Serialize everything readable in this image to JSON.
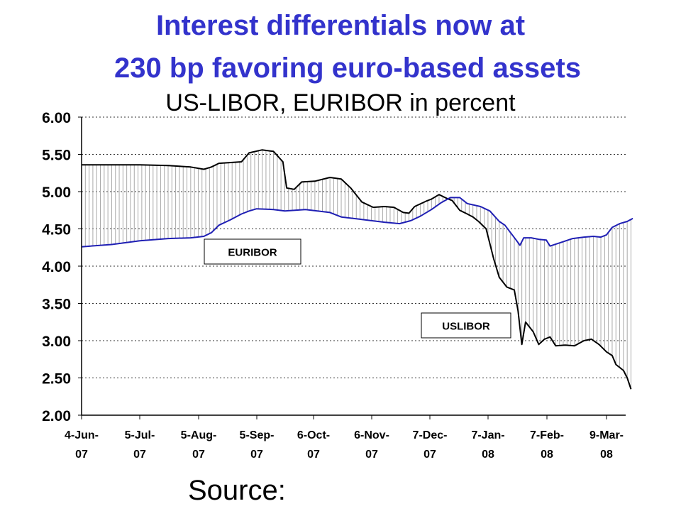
{
  "title_line1": "Interest differentials now at",
  "title_line2": "230 bp favoring euro-based assets",
  "title_color": "#3333cc",
  "subtitle": "US-LIBOR, EURIBOR in percent",
  "source": "Source:",
  "chart_data": {
    "type": "line",
    "title": "Interest differentials now at 230 bp favoring euro-based assets",
    "subtitle": "US-LIBOR, EURIBOR in percent",
    "ylim": [
      2.0,
      6.0
    ],
    "y_ticks": [
      "6.00",
      "5.50",
      "5.00",
      "4.50",
      "4.00",
      "3.50",
      "3.00",
      "2.50",
      "2.00"
    ],
    "x_ticks": [
      {
        "line1": "4-Jun-",
        "line2": "07"
      },
      {
        "line1": "5-Jul-",
        "line2": "07"
      },
      {
        "line1": "5-Aug-",
        "line2": "07"
      },
      {
        "line1": "5-Sep-",
        "line2": "07"
      },
      {
        "line1": "6-Oct-",
        "line2": "07"
      },
      {
        "line1": "6-Nov-",
        "line2": "07"
      },
      {
        "line1": "7-Dec-",
        "line2": "07"
      },
      {
        "line1": "7-Jan-",
        "line2": "08"
      },
      {
        "line1": "7-Feb-",
        "line2": "08"
      },
      {
        "line1": "9-Mar-",
        "line2": "08"
      }
    ],
    "grid": "horizontal dashed",
    "labels": [
      {
        "text": "EURIBOR",
        "series": "EURIBOR"
      },
      {
        "text": "USLIBOR",
        "series": "USLIBOR"
      }
    ],
    "series": [
      {
        "name": "USLIBOR",
        "color": "#000000",
        "points": [
          [
            "2007-06-04",
            5.36
          ],
          [
            "2007-06-20",
            5.36
          ],
          [
            "2007-07-05",
            5.36
          ],
          [
            "2007-07-20",
            5.35
          ],
          [
            "2007-08-01",
            5.33
          ],
          [
            "2007-08-08",
            5.3
          ],
          [
            "2007-08-12",
            5.33
          ],
          [
            "2007-08-16",
            5.38
          ],
          [
            "2007-08-28",
            5.4
          ],
          [
            "2007-09-01",
            5.52
          ],
          [
            "2007-09-08",
            5.56
          ],
          [
            "2007-09-14",
            5.54
          ],
          [
            "2007-09-19",
            5.4
          ],
          [
            "2007-09-21",
            5.05
          ],
          [
            "2007-09-25",
            5.03
          ],
          [
            "2007-09-29",
            5.13
          ],
          [
            "2007-10-06",
            5.14
          ],
          [
            "2007-10-14",
            5.19
          ],
          [
            "2007-10-20",
            5.17
          ],
          [
            "2007-10-25",
            5.05
          ],
          [
            "2007-10-31",
            4.86
          ],
          [
            "2007-11-06",
            4.79
          ],
          [
            "2007-11-12",
            4.8
          ],
          [
            "2007-11-17",
            4.79
          ],
          [
            "2007-11-22",
            4.72
          ],
          [
            "2007-11-25",
            4.71
          ],
          [
            "2007-11-28",
            4.8
          ],
          [
            "2007-12-04",
            4.87
          ],
          [
            "2007-12-07",
            4.9
          ],
          [
            "2007-12-11",
            4.96
          ],
          [
            "2007-12-15",
            4.91
          ],
          [
            "2007-12-18",
            4.88
          ],
          [
            "2007-12-22",
            4.75
          ],
          [
            "2007-12-26",
            4.7
          ],
          [
            "2007-12-29",
            4.66
          ],
          [
            "2008-01-01",
            4.6
          ],
          [
            "2008-01-05",
            4.5
          ],
          [
            "2008-01-07",
            4.3
          ],
          [
            "2008-01-09",
            4.1
          ],
          [
            "2008-01-12",
            3.85
          ],
          [
            "2008-01-16",
            3.72
          ],
          [
            "2008-01-20",
            3.68
          ],
          [
            "2008-01-22",
            3.4
          ],
          [
            "2008-01-24",
            2.95
          ],
          [
            "2008-01-26",
            3.25
          ],
          [
            "2008-01-30",
            3.12
          ],
          [
            "2008-02-02",
            2.95
          ],
          [
            "2008-02-05",
            3.02
          ],
          [
            "2008-02-08",
            3.05
          ],
          [
            "2008-02-11",
            2.93
          ],
          [
            "2008-02-16",
            2.94
          ],
          [
            "2008-02-21",
            2.93
          ],
          [
            "2008-02-26",
            3.0
          ],
          [
            "2008-03-01",
            3.02
          ],
          [
            "2008-03-05",
            2.95
          ],
          [
            "2008-03-09",
            2.85
          ],
          [
            "2008-03-12",
            2.8
          ],
          [
            "2008-03-14",
            2.68
          ],
          [
            "2008-03-18",
            2.6
          ],
          [
            "2008-03-20",
            2.5
          ],
          [
            "2008-03-22",
            2.35
          ]
        ]
      },
      {
        "name": "EURIBOR",
        "color": "#1f1fb4",
        "points": [
          [
            "2007-06-04",
            4.26
          ],
          [
            "2007-06-20",
            4.29
          ],
          [
            "2007-07-05",
            4.34
          ],
          [
            "2007-07-20",
            4.37
          ],
          [
            "2007-08-01",
            4.38
          ],
          [
            "2007-08-08",
            4.4
          ],
          [
            "2007-08-12",
            4.45
          ],
          [
            "2007-08-16",
            4.55
          ],
          [
            "2007-08-22",
            4.62
          ],
          [
            "2007-08-28",
            4.7
          ],
          [
            "2007-09-01",
            4.74
          ],
          [
            "2007-09-05",
            4.77
          ],
          [
            "2007-09-14",
            4.76
          ],
          [
            "2007-09-20",
            4.74
          ],
          [
            "2007-10-01",
            4.76
          ],
          [
            "2007-10-14",
            4.72
          ],
          [
            "2007-10-20",
            4.66
          ],
          [
            "2007-10-30",
            4.63
          ],
          [
            "2007-11-12",
            4.59
          ],
          [
            "2007-11-20",
            4.57
          ],
          [
            "2007-11-26",
            4.61
          ],
          [
            "2007-12-01",
            4.67
          ],
          [
            "2007-12-07",
            4.76
          ],
          [
            "2007-12-12",
            4.85
          ],
          [
            "2007-12-17",
            4.92
          ],
          [
            "2007-12-22",
            4.92
          ],
          [
            "2007-12-26",
            4.84
          ],
          [
            "2008-01-02",
            4.8
          ],
          [
            "2008-01-07",
            4.74
          ],
          [
            "2008-01-12",
            4.6
          ],
          [
            "2008-01-15",
            4.55
          ],
          [
            "2008-01-18",
            4.45
          ],
          [
            "2008-01-21",
            4.35
          ],
          [
            "2008-01-23",
            4.28
          ],
          [
            "2008-01-25",
            4.38
          ],
          [
            "2008-01-29",
            4.38
          ],
          [
            "2008-02-02",
            4.36
          ],
          [
            "2008-02-06",
            4.35
          ],
          [
            "2008-02-08",
            4.27
          ],
          [
            "2008-02-14",
            4.32
          ],
          [
            "2008-02-20",
            4.37
          ],
          [
            "2008-02-26",
            4.39
          ],
          [
            "2008-03-02",
            4.4
          ],
          [
            "2008-03-06",
            4.39
          ],
          [
            "2008-03-09",
            4.42
          ],
          [
            "2008-03-12",
            4.52
          ],
          [
            "2008-03-16",
            4.57
          ],
          [
            "2008-03-20",
            4.6
          ],
          [
            "2008-03-23",
            4.64
          ]
        ]
      }
    ]
  }
}
